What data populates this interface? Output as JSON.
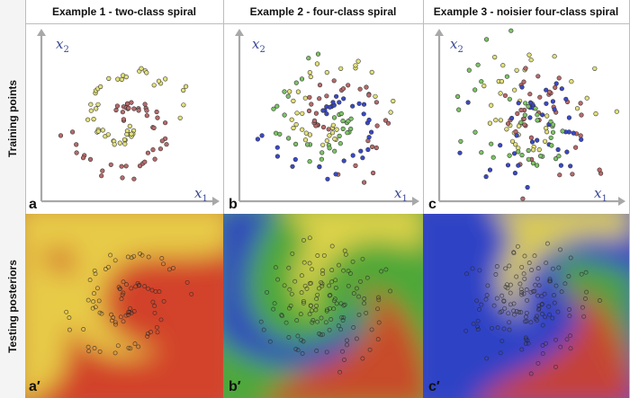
{
  "columns": [
    {
      "title": "Example 1  -  two-class spiral"
    },
    {
      "title": "Example 2  -  four-class spiral"
    },
    {
      "title": "Example 3  -  noisier four-class spiral"
    }
  ],
  "rows": [
    {
      "title": "Training points"
    },
    {
      "title": "Testing posteriors"
    }
  ],
  "axes": {
    "x": "x",
    "y": "x",
    "x_sub": "1",
    "y_sub": "2"
  },
  "panel_letters": [
    "a",
    "b",
    "c",
    "a′",
    "b′",
    "c′"
  ],
  "colors": {
    "class_a": "#e2e07a",
    "class_b": "#b86a6a",
    "class_c": "#3a49c8",
    "class_d": "#7cc464",
    "bg_yellow": "#e8d64a",
    "bg_red": "#d2432a",
    "bg_blue": "#2f43c6",
    "bg_green": "#4ea83a",
    "axis": "#a8a8a8"
  }
}
